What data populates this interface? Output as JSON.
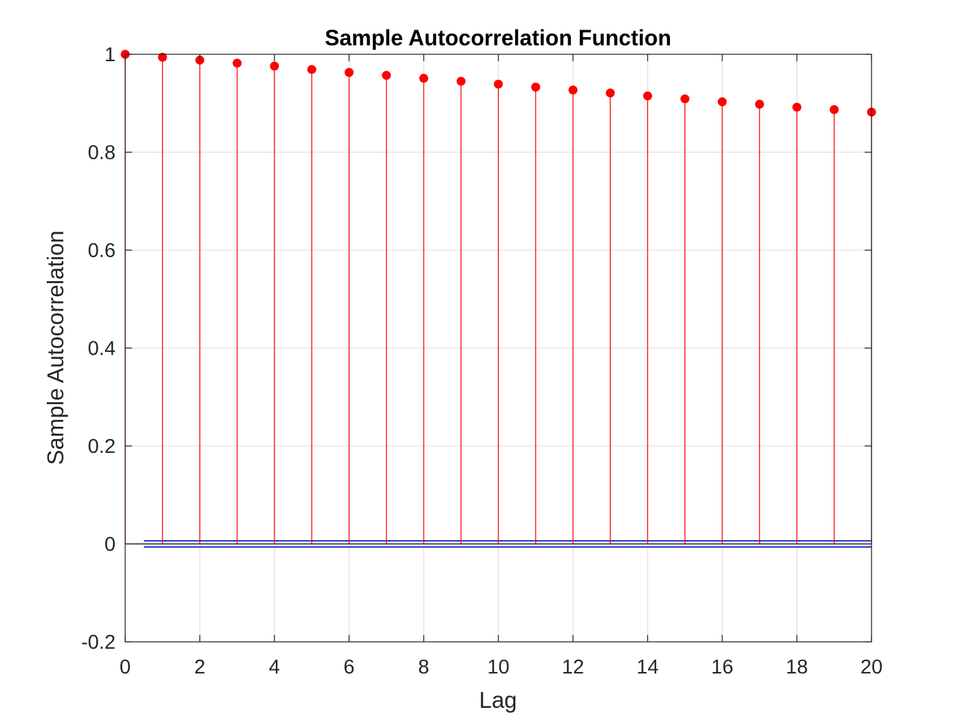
{
  "chart_data": {
    "type": "stem",
    "title": "Sample Autocorrelation Function",
    "xlabel": "Lag",
    "ylabel": "Sample Autocorrelation",
    "xlim": [
      0,
      20
    ],
    "ylim": [
      -0.2,
      1
    ],
    "grid": true,
    "x_ticks": [
      "0",
      "2",
      "4",
      "6",
      "8",
      "10",
      "12",
      "14",
      "16",
      "18",
      "20"
    ],
    "y_ticks": [
      "-0.2",
      "0",
      "0.2",
      "0.4",
      "0.6",
      "0.8",
      "1"
    ],
    "x": [
      0,
      1,
      2,
      3,
      4,
      5,
      6,
      7,
      8,
      9,
      10,
      11,
      12,
      13,
      14,
      15,
      16,
      17,
      18,
      19,
      20
    ],
    "values": [
      1.0,
      0.994,
      0.988,
      0.982,
      0.976,
      0.969,
      0.963,
      0.957,
      0.951,
      0.945,
      0.939,
      0.933,
      0.927,
      0.921,
      0.915,
      0.909,
      0.903,
      0.898,
      0.892,
      0.887,
      0.882
    ],
    "confidence_bounds": {
      "upper": 0.0062,
      "lower": -0.0062,
      "x_start": 0.5,
      "x_end": 20
    },
    "colors": {
      "stem": "#ff0000",
      "bounds": "#0000cc",
      "zero_line": "#000000",
      "grid": "#e0e0e0",
      "axes": "#262626"
    }
  }
}
